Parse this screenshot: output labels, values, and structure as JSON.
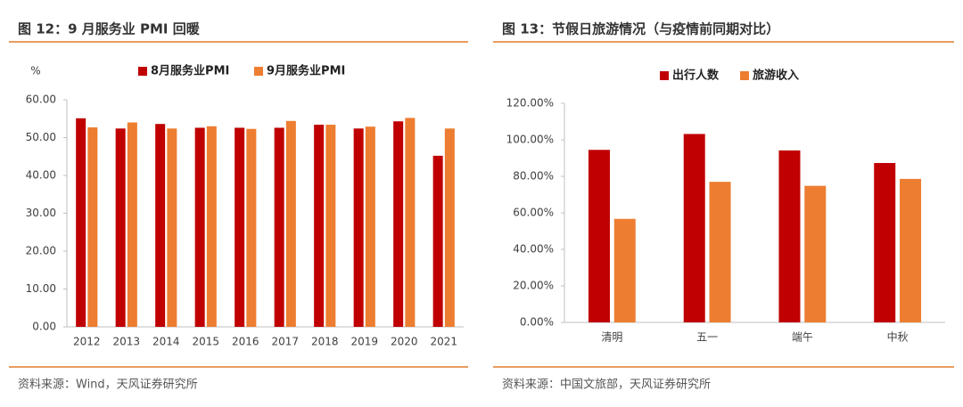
{
  "chart_data": [
    {
      "type": "bar",
      "title": "图 12：9 月服务业 PMI 回暖",
      "y_label": "%",
      "categories": [
        "2012",
        "2013",
        "2014",
        "2015",
        "2016",
        "2017",
        "2018",
        "2019",
        "2020",
        "2021"
      ],
      "series": [
        {
          "name": "8月服务业PMI",
          "color": "#c00000",
          "values": [
            55.1,
            52.4,
            53.6,
            52.6,
            52.6,
            52.6,
            53.4,
            52.4,
            54.3,
            45.2
          ]
        },
        {
          "name": "9月服务业PMI",
          "color": "#ed7d31",
          "values": [
            52.7,
            54.0,
            52.4,
            53.0,
            52.3,
            54.4,
            53.4,
            52.9,
            55.2,
            52.4
          ]
        }
      ],
      "ylim": [
        0,
        60
      ],
      "yticks": [
        {
          "value": 0,
          "label": "0.00"
        },
        {
          "value": 10,
          "label": "10.00"
        },
        {
          "value": 20,
          "label": "20.00"
        },
        {
          "value": 30,
          "label": "30.00"
        },
        {
          "value": 40,
          "label": "40.00"
        },
        {
          "value": 50,
          "label": "50.00"
        },
        {
          "value": 60,
          "label": "60.00"
        }
      ],
      "source": "资料来源：Wind，天风证券研究所"
    },
    {
      "type": "bar",
      "title": "图 13：节假日旅游情况（与疫情前同期对比）",
      "categories": [
        "清明",
        "五一",
        "端午",
        "中秋"
      ],
      "series": [
        {
          "name": "出行人数",
          "color": "#c00000",
          "values": [
            94.5,
            103.2,
            94.2,
            87.3
          ]
        },
        {
          "name": "旅游收入",
          "color": "#ed7d31",
          "values": [
            56.7,
            77.0,
            74.8,
            78.6
          ]
        }
      ],
      "ylim": [
        0,
        120
      ],
      "yticks": [
        {
          "value": 0,
          "label": "0.00%"
        },
        {
          "value": 20,
          "label": "20.00%"
        },
        {
          "value": 40,
          "label": "40.00%"
        },
        {
          "value": 60,
          "label": "60.00%"
        },
        {
          "value": 80,
          "label": "80.00%"
        },
        {
          "value": 100,
          "label": "100.00%"
        },
        {
          "value": 120,
          "label": "120.00%"
        }
      ],
      "source": "资料来源：中国文旅部，天风证券研究所"
    }
  ]
}
